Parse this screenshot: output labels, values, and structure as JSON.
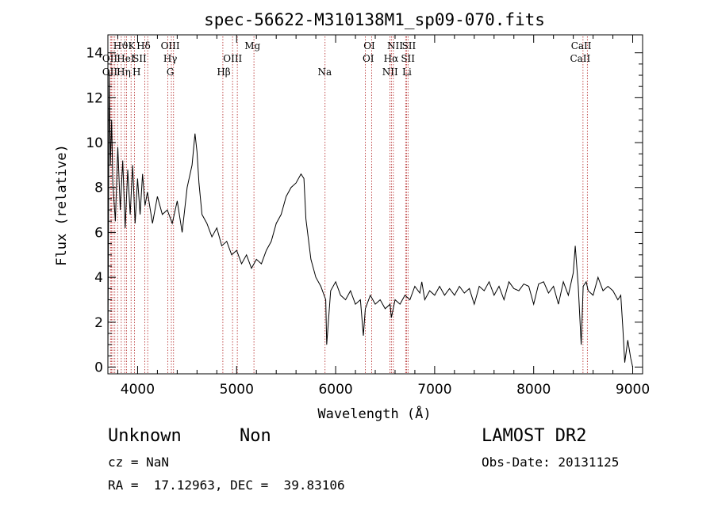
{
  "chart_data": {
    "type": "line",
    "title": "spec-56622-M310138M1_sp09-070.fits",
    "xlabel": "Wavelength (Å)",
    "ylabel": "Flux (relative)",
    "xlim": [
      3700,
      9100
    ],
    "ylim": [
      -0.3,
      14.8
    ],
    "xticks": [
      4000,
      5000,
      6000,
      7000,
      8000,
      9000
    ],
    "yticks": [
      0,
      2,
      4,
      6,
      8,
      10,
      12,
      14
    ],
    "line_color": "#000000",
    "marker_line_color": "#b22222",
    "series": [
      {
        "x": [
          3700,
          3712,
          3725,
          3738,
          3750,
          3775,
          3800,
          3825,
          3850,
          3875,
          3900,
          3925,
          3950,
          3975,
          4000,
          4025,
          4050,
          4075,
          4100,
          4150,
          4200,
          4250,
          4300,
          4350,
          4400,
          4450,
          4500,
          4550,
          4580,
          4600,
          4620,
          4650,
          4700,
          4750,
          4800,
          4850,
          4900,
          4950,
          5000,
          5050,
          5100,
          5150,
          5200,
          5250,
          5300,
          5350,
          5400,
          5450,
          5500,
          5550,
          5600,
          5650,
          5680,
          5700,
          5750,
          5800,
          5850,
          5900,
          5910,
          5950,
          6000,
          6050,
          6100,
          6150,
          6200,
          6250,
          6280,
          6300,
          6350,
          6400,
          6450,
          6500,
          6550,
          6563,
          6600,
          6650,
          6700,
          6750,
          6800,
          6850,
          6870,
          6900,
          6950,
          7000,
          7050,
          7100,
          7150,
          7200,
          7250,
          7300,
          7350,
          7400,
          7450,
          7500,
          7550,
          7600,
          7650,
          7700,
          7750,
          7800,
          7850,
          7900,
          7950,
          8000,
          8050,
          8100,
          8150,
          8200,
          8250,
          8300,
          8350,
          8400,
          8420,
          8450,
          8480,
          8500,
          8530,
          8550,
          8600,
          8650,
          8700,
          8750,
          8800,
          8850,
          8880,
          8900,
          8920,
          8950,
          8980,
          9000
        ],
        "y": [
          0.2,
          13.2,
          9.0,
          11.0,
          8.2,
          6.5,
          9.8,
          7.0,
          9.2,
          6.2,
          8.8,
          6.8,
          9.0,
          6.4,
          8.4,
          6.8,
          8.6,
          7.2,
          7.8,
          6.4,
          7.6,
          6.8,
          7.0,
          6.4,
          7.4,
          6.0,
          8.0,
          9.0,
          10.4,
          9.6,
          8.2,
          6.8,
          6.4,
          5.8,
          6.2,
          5.4,
          5.6,
          5.0,
          5.2,
          4.6,
          5.0,
          4.4,
          4.8,
          4.6,
          5.2,
          5.6,
          6.4,
          6.8,
          7.6,
          8.0,
          8.2,
          8.6,
          8.4,
          6.6,
          4.8,
          4.0,
          3.6,
          3.0,
          1.0,
          3.4,
          3.8,
          3.2,
          3.0,
          3.4,
          2.8,
          3.0,
          1.4,
          2.6,
          3.2,
          2.8,
          3.0,
          2.6,
          2.8,
          2.2,
          3.0,
          2.8,
          3.2,
          3.0,
          3.6,
          3.3,
          3.8,
          3.0,
          3.4,
          3.2,
          3.6,
          3.2,
          3.5,
          3.2,
          3.6,
          3.3,
          3.5,
          2.8,
          3.6,
          3.4,
          3.8,
          3.2,
          3.6,
          3.0,
          3.8,
          3.5,
          3.4,
          3.7,
          3.6,
          2.8,
          3.7,
          3.8,
          3.3,
          3.6,
          2.8,
          3.8,
          3.2,
          4.2,
          5.4,
          3.6,
          1.0,
          3.6,
          3.8,
          3.4,
          3.2,
          4.0,
          3.4,
          3.6,
          3.4,
          3.0,
          3.2,
          1.8,
          0.2,
          1.2,
          0.4,
          0.0
        ]
      }
    ],
    "lines": [
      {
        "x": 3726,
        "labels": [
          "OII"
        ]
      },
      {
        "x": 3735,
        "labels": [
          ""
        ]
      },
      {
        "x": 3750,
        "labels": [
          "H"
        ]
      },
      {
        "x": 3770,
        "labels": [
          "H"
        ]
      },
      {
        "x": 3798,
        "labels": [
          ""
        ]
      },
      {
        "x": 3835,
        "labels": [
          "Hϑ"
        ]
      },
      {
        "x": 3869,
        "labels": [
          "HeI"
        ]
      },
      {
        "x": 3889,
        "labels": [
          "Hη"
        ]
      },
      {
        "x": 3934,
        "labels": [
          "K"
        ]
      },
      {
        "x": 3969,
        "labels": [
          "H"
        ]
      },
      {
        "x": 4072,
        "labels": [
          "SII"
        ]
      },
      {
        "x": 4102,
        "labels": [
          "Hδ"
        ]
      },
      {
        "x": 4304,
        "labels": [
          "G"
        ]
      },
      {
        "x": 4341,
        "labels": [
          "Hγ"
        ]
      },
      {
        "x": 4363,
        "labels": [
          "OIII"
        ]
      },
      {
        "x": 4861,
        "labels": [
          "Hβ"
        ]
      },
      {
        "x": 4959,
        "labels": [
          "OIII"
        ]
      },
      {
        "x": 5007,
        "labels": [
          ""
        ]
      },
      {
        "x": 5175,
        "labels": [
          "Mg"
        ]
      },
      {
        "x": 5893,
        "labels": [
          "Na"
        ]
      },
      {
        "x": 6300,
        "labels": [
          "OI"
        ]
      },
      {
        "x": 6364,
        "labels": [
          "OI"
        ]
      },
      {
        "x": 6548,
        "labels": [
          "NII"
        ]
      },
      {
        "x": 6563,
        "labels": [
          "Hα"
        ]
      },
      {
        "x": 6583,
        "labels": [
          "NII"
        ]
      },
      {
        "x": 6707,
        "labels": [
          "Li"
        ]
      },
      {
        "x": 6716,
        "labels": [
          "SII"
        ]
      },
      {
        "x": 6731,
        "labels": [
          "SII"
        ]
      },
      {
        "x": 8498,
        "labels": [
          "CaII"
        ]
      },
      {
        "x": 8542,
        "labels": [
          "CaII"
        ]
      }
    ]
  },
  "line_label_rows": {
    "row1": [
      "Hϑ",
      "K",
      "Hδ",
      "OIII",
      "Mg",
      "OI",
      "NII",
      "SII",
      "CaII"
    ],
    "row2": [
      "OII",
      "HeI",
      "SII",
      "Hγ",
      "OIII",
      "OI",
      "Hα",
      "SII",
      "CaII"
    ],
    "row3": [
      "OII",
      "Hη",
      "H",
      "G",
      "Hβ",
      "Na",
      "NII",
      "Li"
    ]
  },
  "info": {
    "object_class": "Unknown",
    "object_subclass": "Non",
    "survey": "LAMOST DR2",
    "cz": "cz = NaN",
    "obs_date": "Obs-Date: 20131125",
    "coords": "RA =  17.12963, DEC =  39.83106"
  }
}
